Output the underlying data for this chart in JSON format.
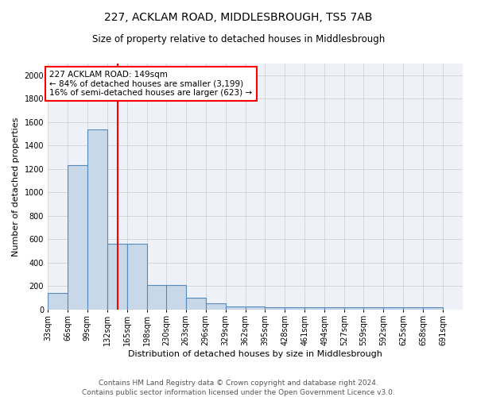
{
  "title": "227, ACKLAM ROAD, MIDDLESBROUGH, TS5 7AB",
  "subtitle": "Size of property relative to detached houses in Middlesbrough",
  "xlabel": "Distribution of detached houses by size in Middlesbrough",
  "ylabel": "Number of detached properties",
  "bar_left_edges": [
    33,
    66,
    99,
    132,
    165,
    198,
    230,
    263,
    296,
    329,
    362,
    395,
    428,
    461,
    494,
    527,
    559,
    592,
    625,
    658
  ],
  "bar_heights": [
    140,
    1230,
    1540,
    560,
    560,
    210,
    210,
    100,
    55,
    30,
    25,
    20,
    20,
    20,
    20,
    20,
    20,
    20,
    20,
    20
  ],
  "bin_width": 33,
  "bar_color": "#c8d8e8",
  "bar_edge_color": "#5588bb",
  "grid_color": "#cccccc",
  "background_color": "#eef2f8",
  "red_line_x": 149,
  "annotation_text": "227 ACKLAM ROAD: 149sqm\n← 84% of detached houses are smaller (3,199)\n16% of semi-detached houses are larger (623) →",
  "annotation_box_color": "white",
  "annotation_box_edge_color": "red",
  "ylim": [
    0,
    2100
  ],
  "yticks": [
    0,
    200,
    400,
    600,
    800,
    1000,
    1200,
    1400,
    1600,
    1800,
    2000
  ],
  "tick_labels": [
    "33sqm",
    "66sqm",
    "99sqm",
    "132sqm",
    "165sqm",
    "198sqm",
    "230sqm",
    "263sqm",
    "296sqm",
    "329sqm",
    "362sqm",
    "395sqm",
    "428sqm",
    "461sqm",
    "494sqm",
    "527sqm",
    "559sqm",
    "592sqm",
    "625sqm",
    "658sqm",
    "691sqm"
  ],
  "footer_text": "Contains HM Land Registry data © Crown copyright and database right 2024.\nContains public sector information licensed under the Open Government Licence v3.0.",
  "title_fontsize": 10,
  "subtitle_fontsize": 8.5,
  "xlabel_fontsize": 8,
  "ylabel_fontsize": 8,
  "tick_fontsize": 7,
  "annotation_fontsize": 7.5,
  "footer_fontsize": 6.5,
  "xlim_left": 33,
  "xlim_right": 724
}
